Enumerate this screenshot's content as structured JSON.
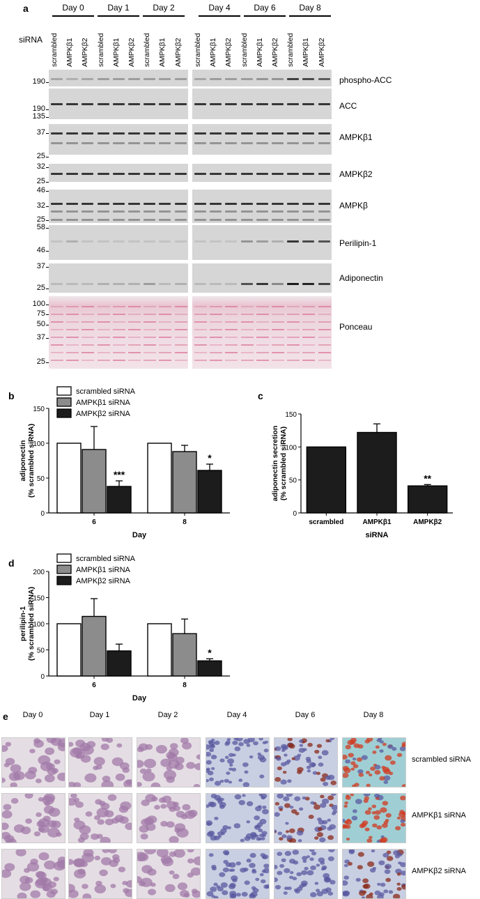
{
  "panel_letters": {
    "a": "a",
    "b": "b",
    "c": "c",
    "d": "d",
    "e": "e"
  },
  "blot": {
    "days": [
      "Day 0",
      "Day 1",
      "Day 2",
      "Day 4",
      "Day 6",
      "Day 8"
    ],
    "sirna_label": "siRNA",
    "lanes": [
      "scrambled",
      "AMPKβ1",
      "AMPKβ2"
    ],
    "rows": [
      {
        "label": "phospho-ACC",
        "markers": [
          "190"
        ]
      },
      {
        "label": "ACC",
        "markers": [
          "190",
          "135"
        ]
      },
      {
        "label": "AMPKβ1",
        "markers": [
          "37",
          "25"
        ]
      },
      {
        "label": "AMPKβ2",
        "markers": [
          "32",
          "25"
        ]
      },
      {
        "label": "AMPKβ",
        "markers": [
          "46",
          "32",
          "25"
        ]
      },
      {
        "label": "Perilipin-1",
        "markers": [
          "58",
          "46"
        ]
      },
      {
        "label": "Adiponectin",
        "markers": [
          "37",
          "25"
        ]
      },
      {
        "label": "Ponceau",
        "markers": [
          "100",
          "75",
          "50",
          "37",
          "25"
        ]
      }
    ],
    "colors": {
      "band": "#1a1a1a",
      "ponceau_band": "#d86a8c"
    }
  },
  "chart_data": [
    {
      "id": "b",
      "type": "bar",
      "categories": [
        "6",
        "8"
      ],
      "series": [
        {
          "name": "scrambled siRNA",
          "values": [
            100,
            100
          ],
          "errors": [
            0,
            0
          ],
          "color": "#ffffff"
        },
        {
          "name": "AMPKβ1 siRNA",
          "values": [
            91,
            88
          ],
          "errors": [
            33,
            9
          ],
          "color": "#8c8c8c"
        },
        {
          "name": "AMPKβ2 siRNA",
          "values": [
            38,
            61
          ],
          "errors": [
            8,
            9
          ],
          "color": "#1c1c1c"
        }
      ],
      "annotations": [
        {
          "series": 2,
          "category": 0,
          "text": "***"
        },
        {
          "series": 2,
          "category": 1,
          "text": "*"
        }
      ],
      "xlabel": "Day",
      "ylabel": "adiponectin\n(% scrambled siRNA)",
      "ylim": [
        0,
        150
      ],
      "yticks": [
        "0",
        "50",
        "100",
        "150"
      ],
      "legend": "top-left"
    },
    {
      "id": "c",
      "type": "bar",
      "categories": [
        "scrambled",
        "AMPKβ1",
        "AMPKβ2"
      ],
      "series": [
        {
          "values": [
            100,
            122,
            41
          ],
          "errors": [
            0,
            13,
            2
          ],
          "color": "#1c1c1c"
        }
      ],
      "annotations": [
        {
          "series": 0,
          "category": 2,
          "text": "**"
        }
      ],
      "xlabel": "siRNA",
      "ylabel": "adiponectin secretion\n(% scrambled siRNA)",
      "ylim": [
        0,
        150
      ],
      "yticks": [
        "0",
        "50",
        "100",
        "150"
      ]
    },
    {
      "id": "d",
      "type": "bar",
      "categories": [
        "6",
        "8"
      ],
      "series": [
        {
          "name": "scrambled siRNA",
          "values": [
            100,
            100
          ],
          "errors": [
            0,
            0
          ],
          "color": "#ffffff"
        },
        {
          "name": "AMPKβ1 siRNA",
          "values": [
            114,
            81
          ],
          "errors": [
            34,
            28
          ],
          "color": "#8c8c8c"
        },
        {
          "name": "AMPKβ2 siRNA",
          "values": [
            48,
            29
          ],
          "errors": [
            13,
            4
          ],
          "color": "#1c1c1c"
        }
      ],
      "annotations": [
        {
          "series": 2,
          "category": 1,
          "text": "*"
        }
      ],
      "xlabel": "Day",
      "ylabel": "perilipin-1\n(% scrambled siRNA)",
      "ylim": [
        0,
        200
      ],
      "yticks": [
        "0",
        "50",
        "100",
        "150",
        "200"
      ],
      "legend": "top-left"
    }
  ],
  "micrographs": {
    "days": [
      "Day 0",
      "Day 1",
      "Day 2",
      "Day 4",
      "Day 6",
      "Day 8"
    ],
    "rows": [
      "scrambled siRNA",
      "AMPKβ1 siRNA",
      "AMPKβ2 siRNA"
    ]
  }
}
